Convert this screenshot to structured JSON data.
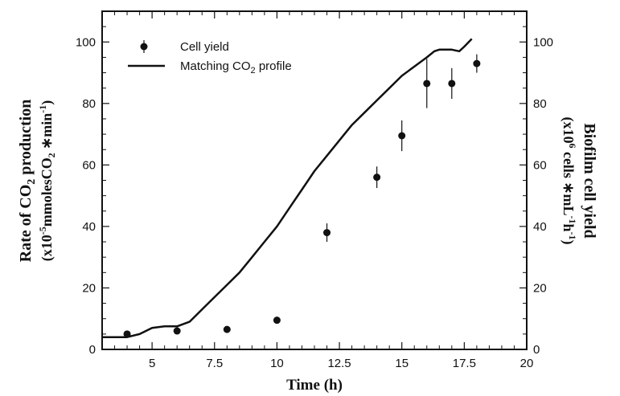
{
  "chart_data": {
    "type": "scatter",
    "xlabel": "Time (h)",
    "x_ticks": [
      "5",
      "7.5",
      "10",
      "12.5",
      "15",
      "17.5",
      "20"
    ],
    "xlim": [
      3,
      20
    ],
    "ylim": [
      0,
      110
    ],
    "y_ticks": [
      "0",
      "20",
      "40",
      "60",
      "80",
      "100"
    ],
    "y_ticks_right": [
      "0",
      "20",
      "40",
      "60",
      "80",
      "100"
    ],
    "ylabel_left": {
      "line1_a": "Rate of CO",
      "line1_sub": "2",
      "line1_b": " production",
      "line2_a": "(x10",
      "line2_sup": "-5",
      "line2_b": "mmolesCO",
      "line2_sub": "2",
      "line2_c": " ∗min",
      "line2_sup2": "-1",
      "line2_d": ")"
    },
    "ylabel_right": {
      "line1": "Biofilm cell yield",
      "line2_a": "(x10",
      "line2_sup": "6",
      "line2_b": " cells ∗mL",
      "line2_sup2": "-1",
      "line2_c": "h",
      "line2_sup3": "-1",
      "line2_d": ")"
    },
    "legend_position": "top-left",
    "series": [
      {
        "name": "Cell yield",
        "kind": "points",
        "x": [
          4,
          6,
          8,
          10,
          12,
          14,
          15,
          16,
          17,
          18
        ],
        "y": [
          5,
          6,
          6.5,
          9.5,
          38,
          56,
          69.5,
          86.5,
          86.5,
          93
        ],
        "err": [
          0.8,
          0.8,
          0.6,
          0.6,
          3,
          3.5,
          5,
          8,
          5,
          3
        ]
      },
      {
        "name_a": "Matching CO",
        "name_sub": "2",
        "name_b": " profile",
        "kind": "line",
        "x": [
          3,
          4,
          4.5,
          5,
          5.5,
          6,
          6.5,
          7,
          7.5,
          8,
          8.5,
          9,
          9.5,
          10,
          10.5,
          11,
          11.5,
          12,
          12.5,
          13,
          13.5,
          14,
          14.5,
          15,
          15.5,
          16,
          16.3,
          16.5,
          17,
          17.3,
          17.5,
          17.8
        ],
        "y": [
          4,
          4,
          5,
          7,
          7.5,
          7.5,
          9,
          13,
          17,
          21,
          25,
          30,
          35,
          40,
          46,
          52,
          58,
          63,
          68,
          73,
          77,
          81,
          85,
          89,
          92,
          95,
          97,
          97.5,
          97.5,
          97,
          98.5,
          101
        ]
      }
    ]
  }
}
